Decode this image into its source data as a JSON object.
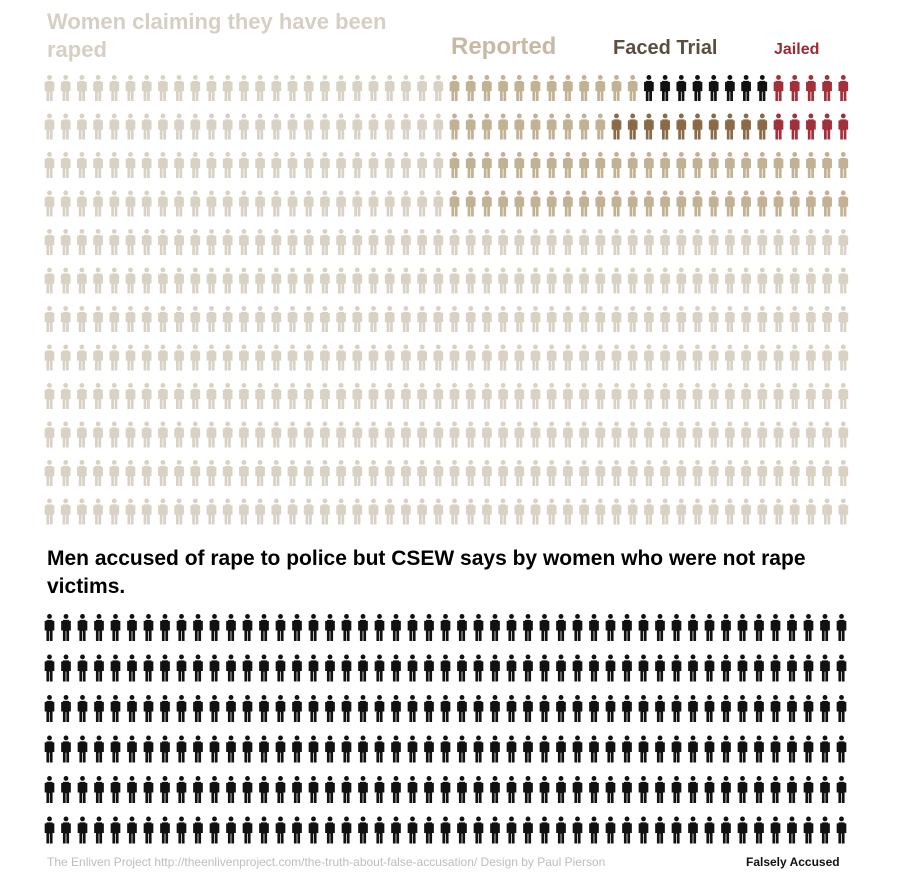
{
  "top_section": {
    "title": "Women claiming they have been raped",
    "headers": {
      "reported": "Reported",
      "faced_trial": "Faced Trial",
      "jailed": "Jailed"
    }
  },
  "bottom_section": {
    "title": "Men accused of rape to police but CSEW says by women who were not rape victims."
  },
  "footer": {
    "credit": "The Enliven Project http://theenlivenproject.com/the-truth-about-false-accusation/ Design by Paul Pierson",
    "label": "Falsely Accused"
  },
  "colors": {
    "claimed": "#d9d1c4",
    "reported": "#c2b192",
    "faced_trial": "#8a6a47",
    "falsely_accused": "#111111",
    "jailed": "#a2303a"
  },
  "icons": {
    "figure": "person-figure-icon"
  },
  "counts": {
    "women_per_row": 50,
    "women_rows": 12,
    "men_per_row": 49,
    "men_rows": 6,
    "women_rows_colored": [
      {
        "reported_from": 25,
        "black_from": 37,
        "jailed_from": 45
      },
      {
        "reported_from": 25,
        "trial_from": 35,
        "jailed_from": 45
      },
      {
        "reported_from": 25
      },
      {
        "reported_from": 25
      }
    ]
  }
}
